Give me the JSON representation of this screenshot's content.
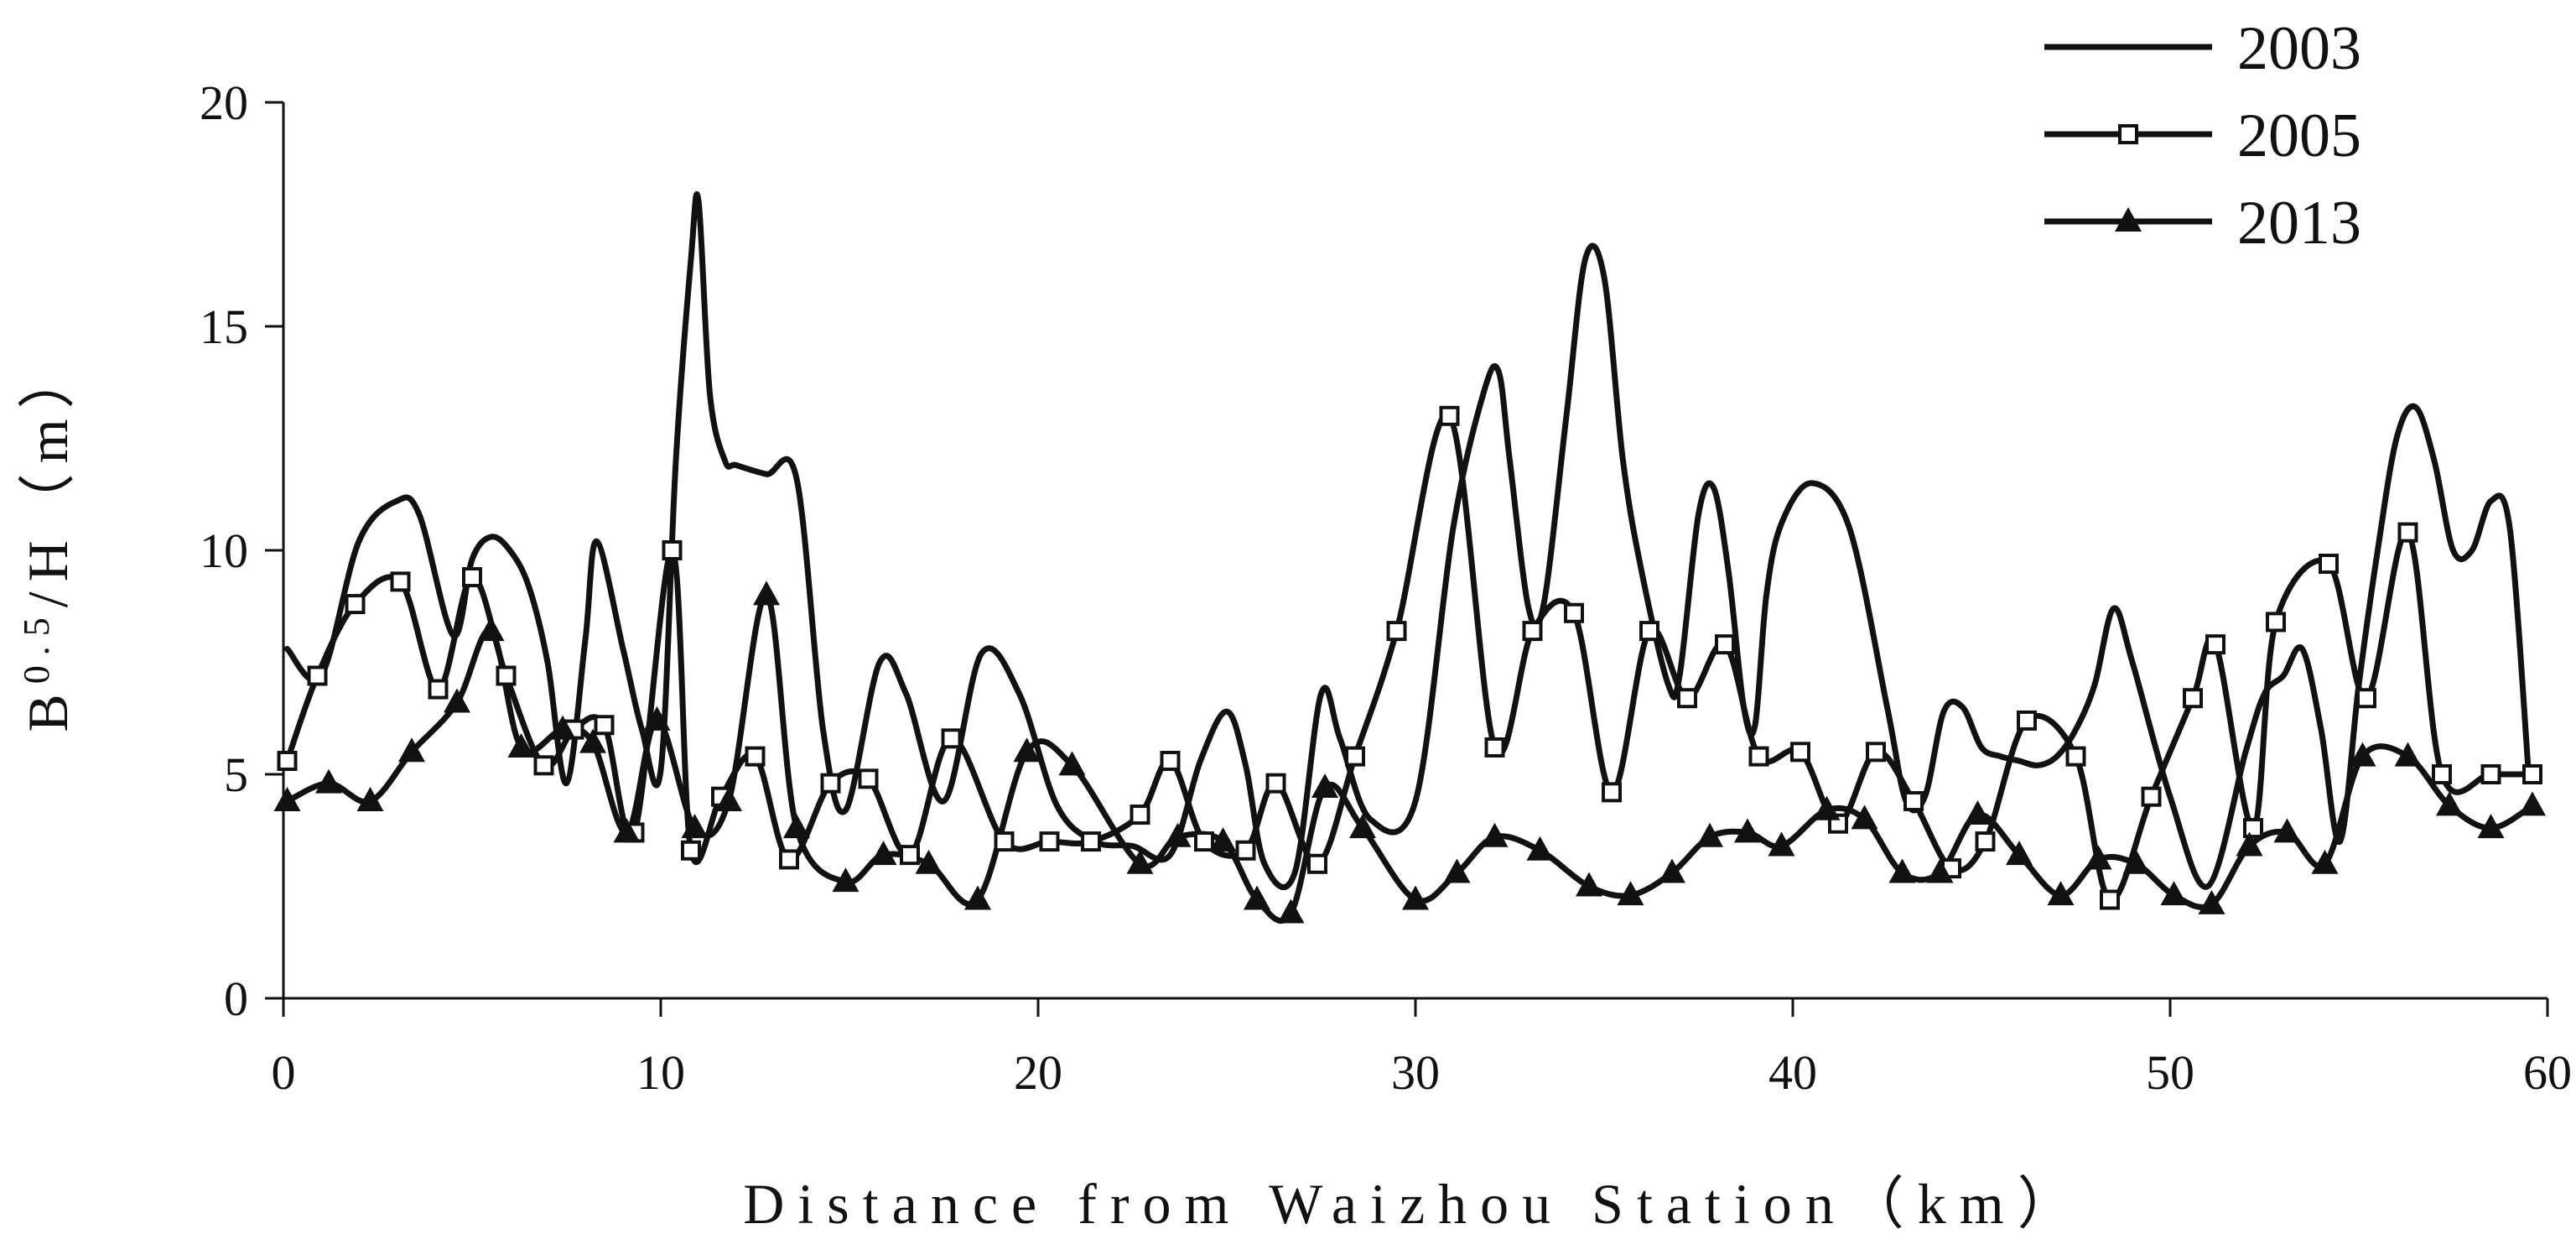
{
  "chart_data": {
    "type": "line",
    "xlabel": "Distance from Waizhou Station（km）",
    "ylabel_parts": {
      "base": "B",
      "sup": "0.5",
      "rest": "/H（m）"
    },
    "xlim": [
      0,
      60
    ],
    "ylim": [
      0,
      20
    ],
    "xticks": [
      0,
      10,
      20,
      30,
      40,
      50,
      60
    ],
    "yticks": [
      0,
      5,
      10,
      15,
      20
    ],
    "legend_position": "top-right",
    "grid": false,
    "series": [
      {
        "name": "2003",
        "marker": "none",
        "x": [
          0.1,
          1,
          2,
          3,
          3.6,
          4.5,
          5,
          5.5,
          6,
          6.5,
          7,
          7.5,
          8,
          8.3,
          9,
          9.5,
          10,
          10.4,
          10.8,
          11,
          11.3,
          11.7,
          12,
          12.8,
          13.6,
          14.3,
          14.9,
          15.8,
          16.5,
          17.5,
          18.5,
          19.5,
          20.5,
          21.5,
          22.5,
          23.5,
          24.3,
          25,
          25.5,
          26,
          26.8,
          27.5,
          28,
          28.8,
          30,
          31,
          31.8,
          32.2,
          32.5,
          33,
          33.4,
          34,
          34.5,
          35,
          35.5,
          36,
          36.7,
          37,
          37.5,
          37.9,
          38.3,
          38.7,
          39,
          39.3,
          39.7,
          40.5,
          41.5,
          42.5,
          43,
          43.5,
          44,
          44.5,
          45,
          45.5,
          46,
          46.5,
          47,
          47.5,
          48,
          48.5,
          49,
          50,
          51,
          52,
          52.5,
          53,
          53.5,
          54,
          54.5,
          55,
          55.5,
          56,
          56.5,
          57,
          57.5,
          58,
          58.5,
          59,
          59.5
        ],
        "y": [
          7.8,
          7.2,
          10.2,
          11.1,
          10.8,
          8.1,
          9.8,
          10.3,
          10,
          9.2,
          7.5,
          4.8,
          8,
          10.2,
          7.8,
          6,
          5.1,
          12,
          16.5,
          17.8,
          13.5,
          12,
          11.9,
          11.7,
          11.6,
          6,
          4.2,
          7.5,
          6.8,
          4.4,
          7.7,
          6.8,
          4.3,
          3.5,
          3.4,
          3.2,
          5.3,
          6.4,
          5.2,
          3,
          2.8,
          6.8,
          5.8,
          4,
          4.4,
          10.5,
          13.5,
          14,
          12,
          8.7,
          8.8,
          13,
          16.5,
          16.1,
          12,
          9.5,
          7,
          7.2,
          10.8,
          11.4,
          9.5,
          6.5,
          6.1,
          9,
          10.6,
          11.5,
          10.5,
          6.5,
          4.4,
          4.5,
          6.4,
          6.5,
          5.6,
          5.4,
          5.3,
          5.2,
          5.4,
          6,
          7,
          8.7,
          7.5,
          4.5,
          2.5,
          5.5,
          6.8,
          7.2,
          7.8,
          6,
          3.5,
          7,
          10,
          12.5,
          13.2,
          12,
          10,
          10,
          11.1,
          10.5,
          5
        ]
      },
      {
        "name": "2005",
        "marker": "square",
        "x": [
          0.1,
          0.9,
          1.9,
          3.1,
          4.1,
          5,
          5.9,
          6.9,
          7.7,
          8.5,
          9.3,
          10.3,
          10.8,
          11.6,
          12.5,
          13.4,
          14.5,
          15.5,
          16.6,
          17.7,
          19.1,
          20.3,
          21.4,
          22.7,
          23.5,
          24.4,
          25.5,
          26.3,
          27.4,
          28.4,
          29.5,
          30.9,
          32.1,
          33.1,
          34.2,
          35.2,
          36.2,
          37.2,
          38.2,
          39.1,
          40.2,
          41.2,
          42.2,
          43.2,
          44.2,
          45.1,
          46.2,
          47.5,
          48.4,
          49.5,
          50.6,
          51.2,
          52.2,
          52.8,
          54.2,
          55.2,
          56.3,
          57.2,
          58.5,
          59.6
        ],
        "y": [
          5.3,
          7.2,
          8.8,
          9.3,
          6.9,
          9.4,
          7.2,
          5.2,
          6.0,
          6.1,
          3.7,
          10.0,
          3.3,
          4.5,
          5.4,
          3.1,
          4.8,
          4.9,
          3.2,
          5.8,
          3.5,
          3.5,
          3.5,
          4.1,
          5.3,
          3.5,
          3.3,
          4.8,
          3.0,
          5.4,
          8.2,
          13.0,
          5.6,
          8.2,
          8.6,
          4.6,
          8.2,
          6.7,
          7.9,
          5.4,
          5.5,
          3.9,
          5.5,
          4.4,
          2.9,
          3.5,
          6.2,
          5.4,
          2.2,
          4.5,
          6.7,
          7.9,
          3.8,
          8.4,
          9.7,
          6.7,
          10.4,
          5.0,
          5.0,
          5.0
        ]
      },
      {
        "name": "2013",
        "marker": "triangle",
        "x": [
          0.1,
          1.2,
          2.3,
          3.4,
          4.6,
          5.5,
          6.3,
          7.4,
          8.2,
          9.1,
          9.9,
          10.9,
          11.8,
          12.8,
          13.6,
          14.9,
          15.9,
          17.1,
          18.4,
          19.7,
          20.9,
          22.7,
          23.7,
          24.9,
          25.8,
          26.7,
          27.6,
          28.6,
          30,
          31.1,
          32.1,
          33.3,
          34.6,
          35.7,
          36.8,
          37.8,
          38.8,
          39.7,
          40.9,
          41.9,
          42.9,
          43.9,
          44.9,
          46,
          47.1,
          48.1,
          49.1,
          50.1,
          51.1,
          52.1,
          53.1,
          54.1,
          55.1,
          56.3,
          57.4,
          58.5,
          59.6
        ],
        "y": [
          4.4,
          4.8,
          4.4,
          5.5,
          6.6,
          8.2,
          5.6,
          6.0,
          5.7,
          3.7,
          6.2,
          3.8,
          4.4,
          9.0,
          3.8,
          2.6,
          3.2,
          3.0,
          2.2,
          5.5,
          5.2,
          3.0,
          3.6,
          3.5,
          2.2,
          1.9,
          4.7,
          3.8,
          2.2,
          2.8,
          3.6,
          3.3,
          2.5,
          2.3,
          2.8,
          3.6,
          3.7,
          3.4,
          4.2,
          4.0,
          2.8,
          2.8,
          4.1,
          3.2,
          2.3,
          3.1,
          3.0,
          2.3,
          2.1,
          3.4,
          3.7,
          3.0,
          5.4,
          5.4,
          4.3,
          3.8,
          4.3
        ]
      }
    ]
  }
}
